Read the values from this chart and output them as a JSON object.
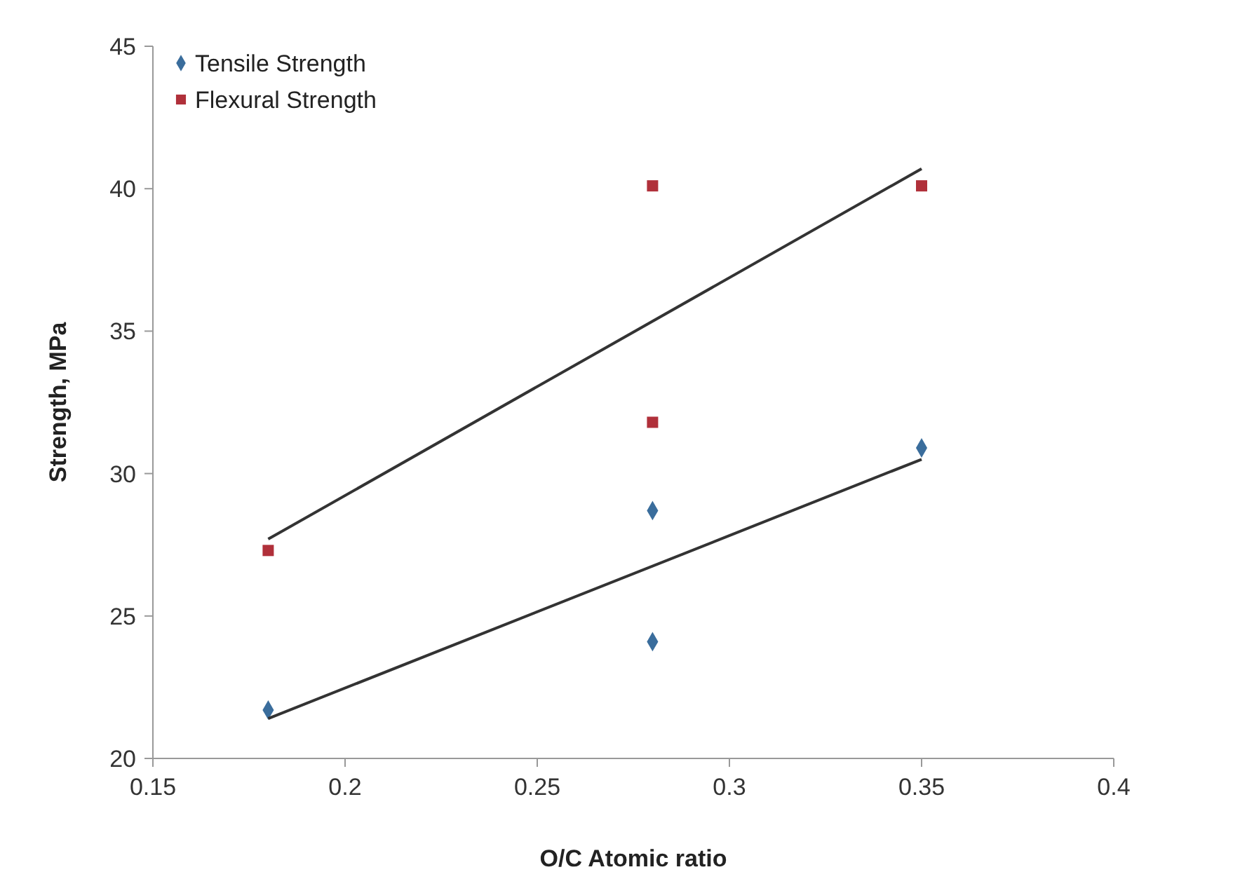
{
  "chart_data": {
    "type": "scatter",
    "xlabel": "O/C Atomic ratio",
    "ylabel": "Strength, MPa",
    "xlim": [
      0.15,
      0.4
    ],
    "xticks": [
      0.15,
      0.2,
      0.25,
      0.3,
      0.35,
      0.4
    ],
    "ylim": [
      20,
      45
    ],
    "yticks": [
      20,
      25,
      30,
      35,
      40,
      45
    ],
    "grid": false,
    "legend": "top left",
    "series": [
      {
        "name": "Tensile Strength",
        "color": "#3a6d9c",
        "marker": "diamond",
        "x": [
          0.18,
          0.28,
          0.28,
          0.35
        ],
        "values": [
          21.7,
          28.7,
          24.1,
          30.9
        ]
      },
      {
        "name": "Flexural Strength",
        "color": "#b0303a",
        "marker": "square",
        "x": [
          0.18,
          0.28,
          0.28,
          0.35
        ],
        "values": [
          27.3,
          40.1,
          31.8,
          40.1
        ]
      },
      {
        "type": "line",
        "color": "#333333",
        "marker": "none",
        "x": [
          0.18,
          0.35
        ],
        "values": [
          21.4,
          30.5
        ]
      },
      {
        "type": "line",
        "color": "#333333",
        "marker": "none",
        "x": [
          0.18,
          0.35
        ],
        "values": [
          27.7,
          40.7
        ]
      }
    ]
  }
}
